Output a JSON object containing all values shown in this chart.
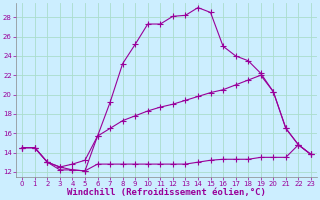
{
  "background_color": "#cceeff",
  "grid_color": "#aaddcc",
  "line_color": "#990099",
  "xlabel": "Windchill (Refroidissement éolien,°C)",
  "xlabel_fontsize": 6.5,
  "ylabel_ticks": [
    12,
    14,
    16,
    18,
    20,
    22,
    24,
    26,
    28
  ],
  "xlim": [
    -0.5,
    23.5
  ],
  "ylim": [
    11.5,
    29.5
  ],
  "xticks": [
    0,
    1,
    2,
    3,
    4,
    5,
    6,
    7,
    8,
    9,
    10,
    11,
    12,
    13,
    14,
    15,
    16,
    17,
    18,
    19,
    20,
    21,
    22,
    23
  ],
  "line1_x": [
    0,
    1,
    2,
    3,
    4,
    5,
    6,
    7,
    8,
    9,
    10,
    11,
    12,
    13,
    14,
    15,
    16,
    17,
    18,
    19,
    20,
    21,
    22,
    23
  ],
  "line1_y": [
    14.5,
    14.5,
    13.0,
    12.2,
    12.2,
    12.1,
    15.7,
    19.2,
    23.2,
    25.2,
    27.3,
    27.3,
    28.1,
    28.2,
    29.0,
    28.5,
    25.0,
    24.0,
    23.5,
    22.2,
    20.3,
    16.5,
    14.8,
    13.8
  ],
  "line2_x": [
    0,
    1,
    2,
    3,
    4,
    5,
    6,
    7,
    8,
    9,
    10,
    11,
    12,
    13,
    14,
    15,
    16,
    17,
    18,
    19,
    20,
    21,
    22,
    23
  ],
  "line2_y": [
    14.5,
    14.5,
    13.0,
    12.5,
    12.8,
    13.2,
    15.7,
    16.5,
    17.3,
    17.8,
    18.3,
    18.7,
    19.0,
    19.4,
    19.8,
    20.2,
    20.5,
    21.0,
    21.5,
    22.0,
    20.3,
    16.5,
    14.8,
    13.8
  ],
  "line3_x": [
    0,
    1,
    2,
    3,
    4,
    5,
    6,
    7,
    8,
    9,
    10,
    11,
    12,
    13,
    14,
    15,
    16,
    17,
    18,
    19,
    20,
    21,
    22,
    23
  ],
  "line3_y": [
    14.5,
    14.5,
    13.0,
    12.5,
    12.2,
    12.1,
    12.8,
    12.8,
    12.8,
    12.8,
    12.8,
    12.8,
    12.8,
    12.8,
    13.0,
    13.2,
    13.3,
    13.3,
    13.3,
    13.5,
    13.5,
    13.5,
    14.8,
    13.8
  ]
}
